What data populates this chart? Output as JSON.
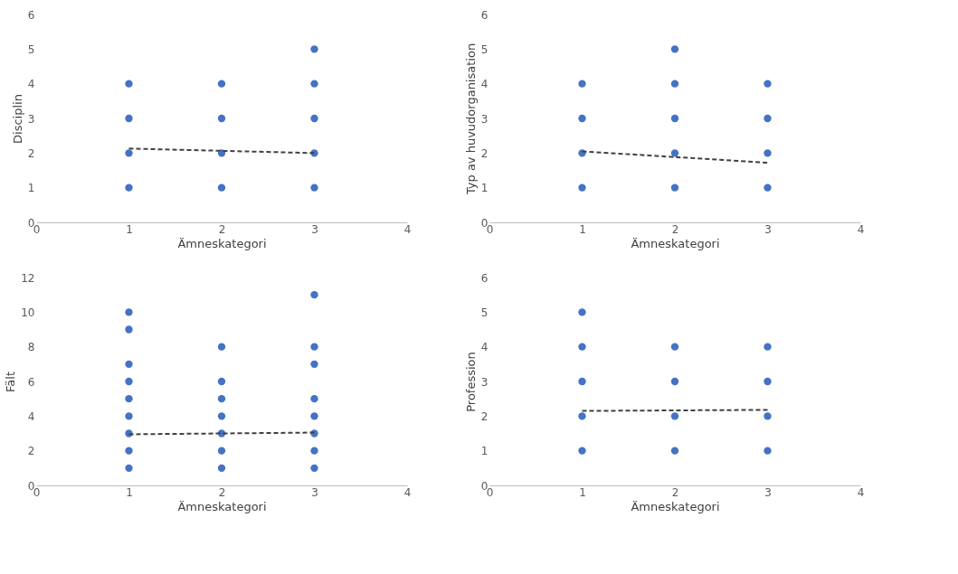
{
  "chart_data": [
    {
      "type": "scatter",
      "xlabel": "Ämneskategori",
      "ylabel": "Disciplin",
      "xlim": [
        0,
        4
      ],
      "xticks": [
        0,
        1,
        2,
        3,
        4
      ],
      "ylim": [
        0,
        6
      ],
      "yticks": [
        0,
        1,
        2,
        3,
        4,
        5,
        6
      ],
      "grid": false,
      "marker": "circle",
      "series": [
        {
          "color": "#4472c4",
          "x": [
            1,
            1,
            1,
            1,
            2,
            2,
            2,
            2,
            3,
            3,
            3,
            3,
            3
          ],
          "values": [
            1,
            2,
            3,
            4,
            1,
            2,
            3,
            4,
            1,
            2,
            3,
            4,
            5
          ]
        },
        {
          "type": "line",
          "color": "#404040",
          "line_style": "dashed",
          "marker": "none",
          "x": [
            1,
            3
          ],
          "values": [
            2.13,
            2.0
          ]
        }
      ]
    },
    {
      "type": "scatter",
      "xlabel": "Ämneskategori",
      "ylabel": "Typ av huvudorganisation",
      "xlim": [
        0,
        4
      ],
      "xticks": [
        0,
        1,
        2,
        3,
        4
      ],
      "ylim": [
        0,
        6
      ],
      "yticks": [
        0,
        1,
        2,
        3,
        4,
        5,
        6
      ],
      "grid": false,
      "marker": "circle",
      "series": [
        {
          "color": "#4472c4",
          "x": [
            1,
            1,
            1,
            1,
            2,
            2,
            2,
            2,
            2,
            3,
            3,
            3,
            3
          ],
          "values": [
            1,
            2,
            3,
            4,
            1,
            2,
            3,
            4,
            5,
            1,
            2,
            3,
            4
          ]
        },
        {
          "type": "line",
          "color": "#404040",
          "line_style": "dashed",
          "marker": "none",
          "x": [
            1,
            3
          ],
          "values": [
            2.05,
            1.72
          ]
        }
      ]
    },
    {
      "type": "scatter",
      "xlabel": "Ämneskategori",
      "ylabel": "Fält",
      "xlim": [
        0,
        4
      ],
      "xticks": [
        0,
        1,
        2,
        3,
        4
      ],
      "ylim": [
        0,
        12
      ],
      "yticks": [
        0,
        2,
        4,
        6,
        8,
        10,
        12
      ],
      "grid": false,
      "marker": "circle",
      "series": [
        {
          "color": "#4472c4",
          "x": [
            1,
            1,
            1,
            1,
            1,
            1,
            1,
            1,
            1,
            2,
            2,
            2,
            2,
            2,
            2,
            2,
            3,
            3,
            3,
            3,
            3,
            3,
            3,
            3
          ],
          "values": [
            1,
            2,
            3,
            4,
            5,
            6,
            7,
            9,
            10,
            1,
            2,
            3,
            4,
            5,
            6,
            8,
            1,
            2,
            3,
            4,
            5,
            7,
            8,
            11
          ]
        },
        {
          "type": "line",
          "color": "#404040",
          "line_style": "dashed",
          "marker": "none",
          "x": [
            1,
            3
          ],
          "values": [
            2.95,
            3.05
          ]
        }
      ]
    },
    {
      "type": "scatter",
      "xlabel": "Ämneskategori",
      "ylabel": "Profession",
      "xlim": [
        0,
        4
      ],
      "xticks": [
        0,
        1,
        2,
        3,
        4
      ],
      "ylim": [
        0,
        6
      ],
      "yticks": [
        0,
        1,
        2,
        3,
        4,
        5,
        6
      ],
      "grid": false,
      "marker": "circle",
      "series": [
        {
          "color": "#4472c4",
          "x": [
            1,
            1,
            1,
            1,
            1,
            2,
            2,
            2,
            2,
            3,
            3,
            3,
            3
          ],
          "values": [
            1,
            2,
            3,
            4,
            5,
            1,
            2,
            3,
            4,
            1,
            2,
            3,
            4
          ]
        },
        {
          "type": "line",
          "color": "#404040",
          "line_style": "dashed",
          "marker": "none",
          "x": [
            1,
            3
          ],
          "values": [
            2.15,
            2.18
          ]
        }
      ]
    }
  ]
}
